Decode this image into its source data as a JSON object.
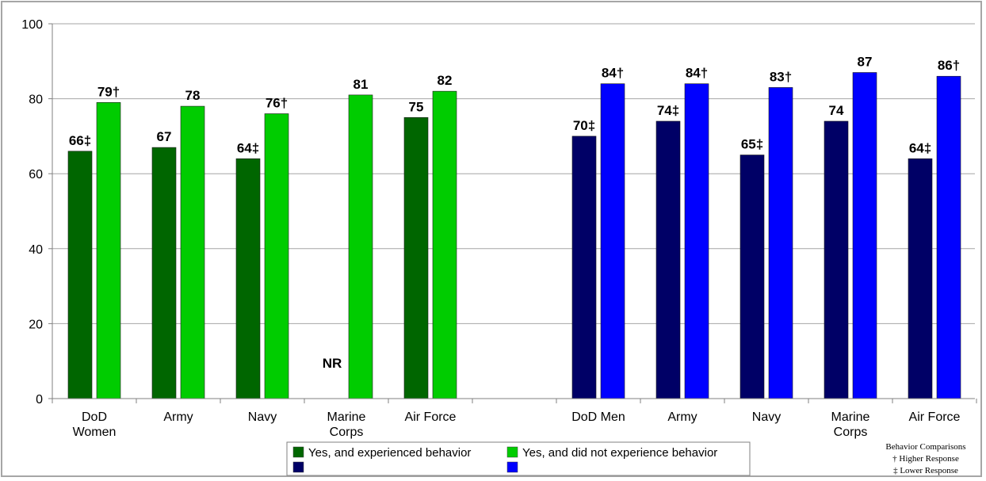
{
  "chart_data": {
    "type": "bar",
    "ylim": [
      0,
      100
    ],
    "yticks": [
      0,
      20,
      40,
      60,
      80,
      100
    ],
    "grid": true,
    "groups": [
      {
        "categories": [
          {
            "lines": [
              "DoD",
              "Women"
            ]
          },
          {
            "lines": [
              "Army"
            ]
          },
          {
            "lines": [
              "Navy"
            ]
          },
          {
            "lines": [
              "Marine",
              "Corps"
            ]
          },
          {
            "lines": [
              "Air Force"
            ]
          }
        ],
        "series": [
          {
            "color": "#006600",
            "values": [
              66,
              67,
              64,
              null,
              75
            ],
            "labels": [
              "66‡",
              "67",
              "64‡",
              "NR",
              "75"
            ]
          },
          {
            "color": "#00cc00",
            "values": [
              79,
              78,
              76,
              81,
              82
            ],
            "labels": [
              "79†",
              "78",
              "76†",
              "81",
              "82"
            ]
          }
        ]
      },
      {
        "categories": [
          {
            "lines": [
              "DoD Men"
            ]
          },
          {
            "lines": [
              "Army"
            ]
          },
          {
            "lines": [
              "Navy"
            ]
          },
          {
            "lines": [
              "Marine",
              "Corps"
            ]
          },
          {
            "lines": [
              "Air Force"
            ]
          }
        ],
        "series": [
          {
            "color": "#000066",
            "values": [
              70,
              74,
              65,
              74,
              64
            ],
            "labels": [
              "70‡",
              "74‡",
              "65‡",
              "74",
              "64‡"
            ]
          },
          {
            "color": "#0000ff",
            "values": [
              84,
              84,
              83,
              87,
              86
            ],
            "labels": [
              "84†",
              "84†",
              "83†",
              "87",
              "86†"
            ]
          }
        ]
      }
    ]
  },
  "legend": {
    "items": [
      {
        "label": "Yes, and experienced behavior",
        "color": "#006600"
      },
      {
        "label": "Yes, and did not experience behavior",
        "color": "#00cc00"
      },
      {
        "label": "",
        "color": "#000066"
      },
      {
        "label": "",
        "color": "#0000ff"
      }
    ]
  },
  "notes": {
    "title": "Behavior Comparisons",
    "higher": "† Higher Response",
    "lower": "‡ Lower Response"
  }
}
